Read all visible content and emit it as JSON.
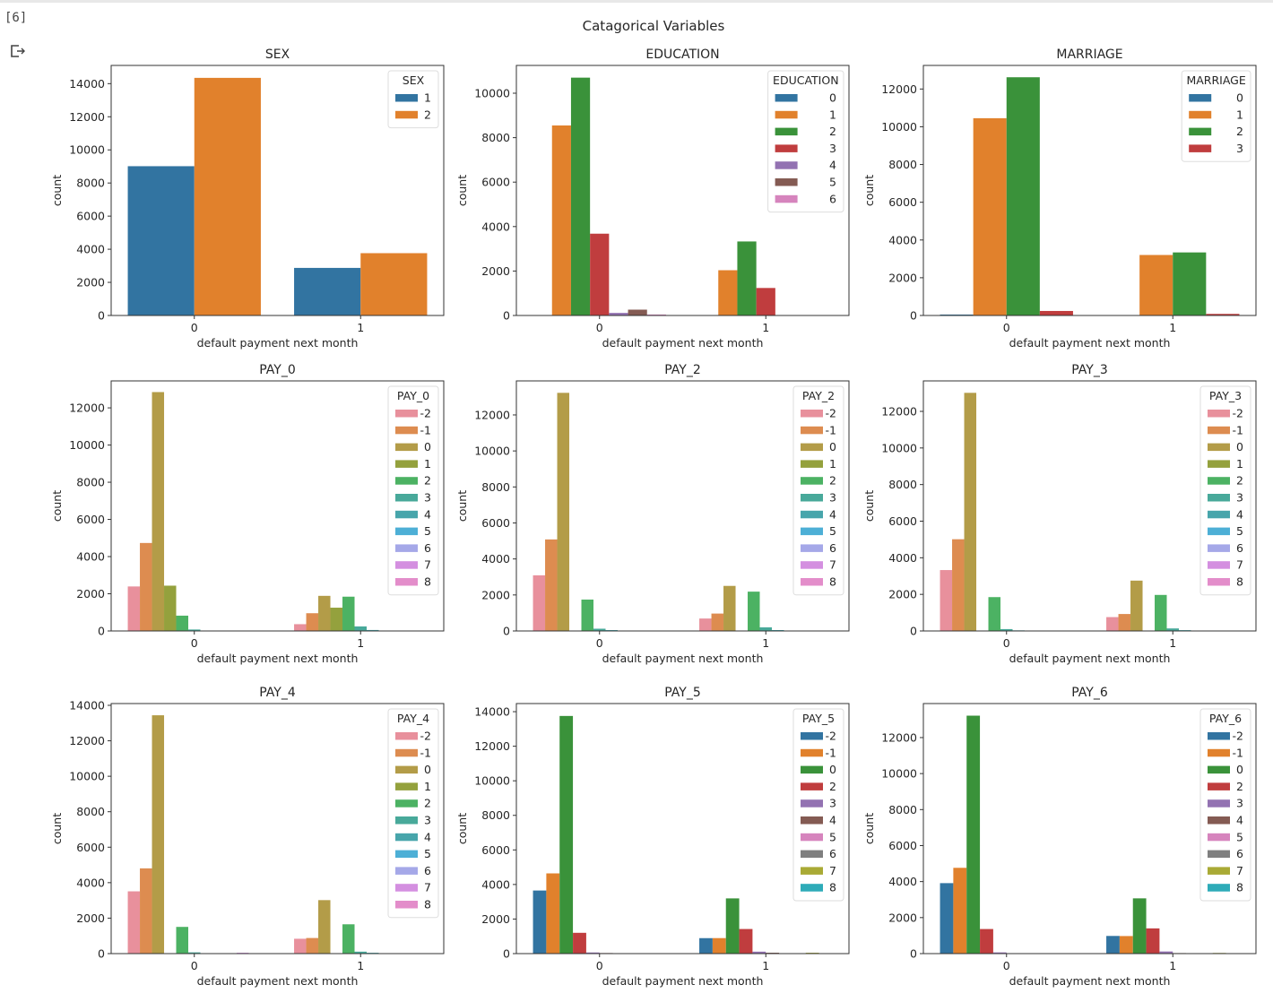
{
  "cell": {
    "execution_count": "[6]",
    "output_icon": "output-redirect-icon"
  },
  "suptitle": "Catagorical Variables",
  "chart_data": [
    {
      "type": "bar",
      "title": "SEX",
      "xlabel": "default payment next month",
      "ylabel": "count",
      "categories": [
        "0",
        "1"
      ],
      "legend_title": "SEX",
      "legend_position": "top-right",
      "ylim": [
        0,
        15100
      ],
      "yticks": [
        0,
        2000,
        4000,
        6000,
        8000,
        10000,
        12000,
        14000
      ],
      "series": [
        {
          "name": "1",
          "color": "#3274a1",
          "values": [
            9015,
            2873
          ]
        },
        {
          "name": "2",
          "color": "#e1812c",
          "values": [
            14349,
            3763
          ]
        }
      ]
    },
    {
      "type": "bar",
      "title": "EDUCATION",
      "xlabel": "default payment next month",
      "ylabel": "count",
      "categories": [
        "0",
        "1"
      ],
      "legend_title": "EDUCATION",
      "legend_position": "top-right",
      "ylim": [
        0,
        11250
      ],
      "yticks": [
        0,
        2000,
        4000,
        6000,
        8000,
        10000
      ],
      "series": [
        {
          "name": "0",
          "color": "#3274a1",
          "values": [
            14,
            0
          ]
        },
        {
          "name": "1",
          "color": "#e1812c",
          "values": [
            8549,
            2036
          ]
        },
        {
          "name": "2",
          "color": "#3a923a",
          "values": [
            10700,
            3330
          ]
        },
        {
          "name": "3",
          "color": "#c03d3e",
          "values": [
            3680,
            1237
          ]
        },
        {
          "name": "4",
          "color": "#9372b2",
          "values": [
            116,
            7
          ]
        },
        {
          "name": "5",
          "color": "#845b53",
          "values": [
            262,
            18
          ]
        },
        {
          "name": "6",
          "color": "#d684bd",
          "values": [
            43,
            8
          ]
        }
      ]
    },
    {
      "type": "bar",
      "title": "MARRIAGE",
      "xlabel": "default payment next month",
      "ylabel": "count",
      "categories": [
        "0",
        "1"
      ],
      "legend_title": "MARRIAGE",
      "legend_position": "top-right",
      "ylim": [
        0,
        13250
      ],
      "yticks": [
        0,
        2000,
        4000,
        6000,
        8000,
        10000,
        12000
      ],
      "series": [
        {
          "name": "0",
          "color": "#3274a1",
          "values": [
            49,
            5
          ]
        },
        {
          "name": "1",
          "color": "#e1812c",
          "values": [
            10453,
            3206
          ]
        },
        {
          "name": "2",
          "color": "#3a923a",
          "values": [
            12623,
            3341
          ]
        },
        {
          "name": "3",
          "color": "#c03d3e",
          "values": [
            239,
            84
          ]
        }
      ]
    },
    {
      "type": "bar",
      "title": "PAY_0",
      "xlabel": "default payment next month",
      "ylabel": "count",
      "categories": [
        "0",
        "1"
      ],
      "legend_title": "PAY_0",
      "legend_position": "top-right",
      "ylim": [
        0,
        13450
      ],
      "yticks": [
        0,
        2000,
        4000,
        6000,
        8000,
        10000,
        12000
      ],
      "series": [
        {
          "name": "-2",
          "color": "#e8909c",
          "values": [
            2394,
            365
          ]
        },
        {
          "name": "-1",
          "color": "#dd8c50",
          "values": [
            4732,
            954
          ]
        },
        {
          "name": "0",
          "color": "#b39c48",
          "values": [
            12849,
            1888
          ]
        },
        {
          "name": "1",
          "color": "#94a13d",
          "values": [
            2436,
            1252
          ]
        },
        {
          "name": "2",
          "color": "#4cb263",
          "values": [
            823,
            1844
          ]
        },
        {
          "name": "3",
          "color": "#48a99a",
          "values": [
            78,
            244
          ]
        },
        {
          "name": "4",
          "color": "#47a5ab",
          "values": [
            24,
            52
          ]
        },
        {
          "name": "5",
          "color": "#4dafd6",
          "values": [
            13,
            13
          ]
        },
        {
          "name": "6",
          "color": "#a5a8e8",
          "values": [
            5,
            6
          ]
        },
        {
          "name": "7",
          "color": "#d48fe0",
          "values": [
            2,
            7
          ]
        },
        {
          "name": "8",
          "color": "#e38dca",
          "values": [
            8,
            11
          ]
        }
      ]
    },
    {
      "type": "bar",
      "title": "PAY_2",
      "xlabel": "default payment next month",
      "ylabel": "count",
      "categories": [
        "0",
        "1"
      ],
      "legend_title": "PAY_2",
      "legend_position": "top-right",
      "ylim": [
        0,
        13890
      ],
      "yticks": [
        0,
        2000,
        4000,
        6000,
        8000,
        10000,
        12000
      ],
      "series": [
        {
          "name": "-2",
          "color": "#e8909c",
          "values": [
            3091,
            691
          ]
        },
        {
          "name": "-1",
          "color": "#dd8c50",
          "values": [
            5084,
            966
          ]
        },
        {
          "name": "0",
          "color": "#b39c48",
          "values": [
            13227,
            2503
          ]
        },
        {
          "name": "1",
          "color": "#94a13d",
          "values": [
            23,
            5
          ]
        },
        {
          "name": "2",
          "color": "#4cb263",
          "values": [
            1743,
            2184
          ]
        },
        {
          "name": "3",
          "color": "#48a99a",
          "values": [
            125,
            201
          ]
        },
        {
          "name": "4",
          "color": "#47a5ab",
          "values": [
            49,
            50
          ]
        },
        {
          "name": "5",
          "color": "#4dafd6",
          "values": [
            10,
            15
          ]
        },
        {
          "name": "6",
          "color": "#a5a8e8",
          "values": [
            3,
            9
          ]
        },
        {
          "name": "7",
          "color": "#d48fe0",
          "values": [
            8,
            12
          ]
        },
        {
          "name": "8",
          "color": "#e38dca",
          "values": [
            1,
            0
          ]
        }
      ]
    },
    {
      "type": "bar",
      "title": "PAY_3",
      "xlabel": "default payment next month",
      "ylabel": "count",
      "categories": [
        "0",
        "1"
      ],
      "legend_title": "PAY_3",
      "legend_position": "top-right",
      "ylim": [
        0,
        13665
      ],
      "yticks": [
        0,
        2000,
        4000,
        6000,
        8000,
        10000,
        12000
      ],
      "series": [
        {
          "name": "-2",
          "color": "#e8909c",
          "values": [
            3328,
            757
          ]
        },
        {
          "name": "-1",
          "color": "#dd8c50",
          "values": [
            5012,
            926
          ]
        },
        {
          "name": "0",
          "color": "#b39c48",
          "values": [
            13013,
            2751
          ]
        },
        {
          "name": "1",
          "color": "#94a13d",
          "values": [
            3,
            1
          ]
        },
        {
          "name": "2",
          "color": "#4cb263",
          "values": [
            1850,
            1969
          ]
        },
        {
          "name": "3",
          "color": "#48a99a",
          "values": [
            102,
            138
          ]
        },
        {
          "name": "4",
          "color": "#47a5ab",
          "values": [
            32,
            44
          ]
        },
        {
          "name": "5",
          "color": "#4dafd6",
          "values": [
            9,
            12
          ]
        },
        {
          "name": "6",
          "color": "#a5a8e8",
          "values": [
            9,
            14
          ]
        },
        {
          "name": "7",
          "color": "#d48fe0",
          "values": [
            9,
            18
          ]
        },
        {
          "name": "8",
          "color": "#e38dca",
          "values": [
            2,
            1
          ]
        }
      ]
    },
    {
      "type": "bar",
      "title": "PAY_4",
      "xlabel": "default payment next month",
      "ylabel": "count",
      "categories": [
        "0",
        "1"
      ],
      "legend_title": "PAY_4",
      "legend_position": "top-right",
      "ylim": [
        0,
        14100
      ],
      "yticks": [
        0,
        2000,
        4000,
        6000,
        8000,
        10000,
        12000,
        14000
      ],
      "series": [
        {
          "name": "-2",
          "color": "#e8909c",
          "values": [
            3511,
            837
          ]
        },
        {
          "name": "-1",
          "color": "#dd8c50",
          "values": [
            4807,
            880
          ]
        },
        {
          "name": "0",
          "color": "#b39c48",
          "values": [
            13439,
            3016
          ]
        },
        {
          "name": "1",
          "color": "#94a13d",
          "values": [
            1,
            1
          ]
        },
        {
          "name": "2",
          "color": "#4cb263",
          "values": [
            1506,
            1653
          ]
        },
        {
          "name": "3",
          "color": "#48a99a",
          "values": [
            70,
            110
          ]
        },
        {
          "name": "4",
          "color": "#47a5ab",
          "values": [
            23,
            46
          ]
        },
        {
          "name": "5",
          "color": "#4dafd6",
          "values": [
            17,
            18
          ]
        },
        {
          "name": "6",
          "color": "#a5a8e8",
          "values": [
            2,
            3
          ]
        },
        {
          "name": "7",
          "color": "#d48fe0",
          "values": [
            46,
            12
          ]
        },
        {
          "name": "8",
          "color": "#e38dca",
          "values": [
            2,
            0
          ]
        }
      ]
    },
    {
      "type": "bar",
      "title": "PAY_5",
      "xlabel": "default payment next month",
      "ylabel": "count",
      "categories": [
        "0",
        "1"
      ],
      "legend_title": "PAY_5",
      "legend_position": "top-right",
      "ylim": [
        0,
        14470
      ],
      "yticks": [
        0,
        2000,
        4000,
        6000,
        8000,
        10000,
        12000,
        14000
      ],
      "series": [
        {
          "name": "-2",
          "color": "#3274a1",
          "values": [
            3651,
            895
          ]
        },
        {
          "name": "-1",
          "color": "#e1812c",
          "values": [
            4642,
            897
          ]
        },
        {
          "name": "0",
          "color": "#3a923a",
          "values": [
            13752,
            3195
          ]
        },
        {
          "name": "2",
          "color": "#c03d3e",
          "values": [
            1203,
            1423
          ]
        },
        {
          "name": "3",
          "color": "#9372b2",
          "values": [
            65,
            113
          ]
        },
        {
          "name": "4",
          "color": "#845b53",
          "values": [
            33,
            51
          ]
        },
        {
          "name": "5",
          "color": "#d684bd",
          "values": [
            7,
            10
          ]
        },
        {
          "name": "6",
          "color": "#7f7f7f",
          "values": [
            1,
            3
          ]
        },
        {
          "name": "7",
          "color": "#a9aa35",
          "values": [
            10,
            48
          ]
        },
        {
          "name": "8",
          "color": "#2eabb8",
          "values": [
            0,
            1
          ]
        }
      ]
    },
    {
      "type": "bar",
      "title": "PAY_6",
      "xlabel": "default payment next month",
      "ylabel": "count",
      "categories": [
        "0",
        "1"
      ],
      "legend_title": "PAY_6",
      "legend_position": "top-right",
      "ylim": [
        0,
        13890
      ],
      "yticks": [
        0,
        2000,
        4000,
        6000,
        8000,
        10000,
        12000
      ],
      "series": [
        {
          "name": "-2",
          "color": "#3274a1",
          "values": [
            3914,
            981
          ]
        },
        {
          "name": "-1",
          "color": "#e1812c",
          "values": [
            4765,
            975
          ]
        },
        {
          "name": "0",
          "color": "#3a923a",
          "values": [
            13217,
            3069
          ]
        },
        {
          "name": "2",
          "color": "#c03d3e",
          "values": [
            1365,
            1401
          ]
        },
        {
          "name": "3",
          "color": "#9372b2",
          "values": [
            66,
            118
          ]
        },
        {
          "name": "4",
          "color": "#845b53",
          "values": [
            20,
            29
          ]
        },
        {
          "name": "5",
          "color": "#d684bd",
          "values": [
            6,
            7
          ]
        },
        {
          "name": "6",
          "color": "#7f7f7f",
          "values": [
            5,
            14
          ]
        },
        {
          "name": "7",
          "color": "#a9aa35",
          "values": [
            10,
            36
          ]
        },
        {
          "name": "8",
          "color": "#2eabb8",
          "values": [
            0,
            2
          ]
        }
      ]
    }
  ]
}
